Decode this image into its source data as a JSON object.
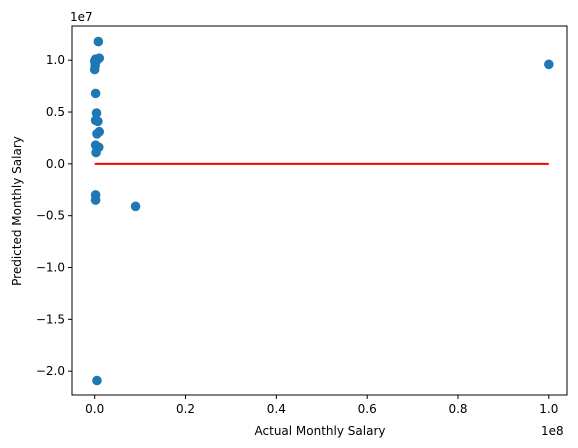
{
  "chart_data": {
    "type": "scatter",
    "xlabel": "Actual Monthly Salary",
    "ylabel": "Predicted Monthly Salary",
    "x_offset_label": "1e8",
    "y_offset_label": "1e7",
    "xlim": [
      -0.05,
      1.04
    ],
    "ylim": [
      -2.23,
      1.33
    ],
    "x_ticks": [
      0.0,
      0.2,
      0.4,
      0.6,
      0.8,
      1.0
    ],
    "x_tick_labels": [
      "0.0",
      "0.2",
      "0.4",
      "0.6",
      "0.8",
      "1.0"
    ],
    "y_ticks": [
      1.0,
      0.5,
      0.0,
      -0.5,
      -1.0,
      -1.5,
      -2.0
    ],
    "y_tick_labels": [
      "1.0",
      "0.5",
      "0.0",
      "−0.5",
      "−1.0",
      "−1.5",
      "−2.0"
    ],
    "grid": false,
    "scatter_color": "#1f77b4",
    "line_color": "#ff0000",
    "points": [
      {
        "x": 0.008,
        "y": 1.18
      },
      {
        "x": 0.002,
        "y": 1.01
      },
      {
        "x": 0.0,
        "y": 0.99
      },
      {
        "x": 0.001,
        "y": 0.95
      },
      {
        "x": 0.0,
        "y": 0.91
      },
      {
        "x": 0.01,
        "y": 1.02
      },
      {
        "x": 0.005,
        "y": 1.0
      },
      {
        "x": 0.002,
        "y": 0.68
      },
      {
        "x": 0.004,
        "y": 0.49
      },
      {
        "x": 0.002,
        "y": 0.42
      },
      {
        "x": 0.007,
        "y": 0.41
      },
      {
        "x": 0.01,
        "y": 0.31
      },
      {
        "x": 0.005,
        "y": 0.29
      },
      {
        "x": 0.002,
        "y": 0.18
      },
      {
        "x": 0.009,
        "y": 0.16
      },
      {
        "x": 0.003,
        "y": 0.11
      },
      {
        "x": 0.002,
        "y": -0.3
      },
      {
        "x": 0.002,
        "y": -0.35
      },
      {
        "x": 0.09,
        "y": -0.41
      },
      {
        "x": 0.005,
        "y": -2.09
      },
      {
        "x": 1.0,
        "y": 0.96
      }
    ],
    "line": {
      "x": [
        0.0,
        1.0
      ],
      "y": [
        0.0,
        0.0
      ]
    }
  }
}
